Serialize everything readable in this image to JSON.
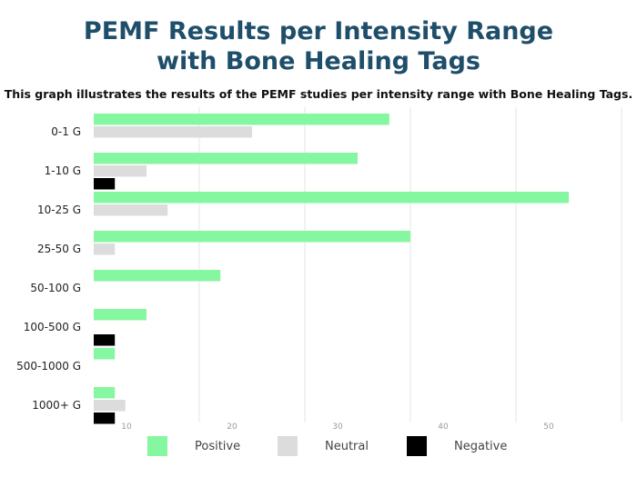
{
  "chart_data": {
    "type": "bar",
    "orientation": "horizontal",
    "title": "PEMF Results per Intensity Range with Bone Healing Tags",
    "title_lines": [
      "PEMF Results per Intensity Range",
      "with Bone Healing Tags"
    ],
    "subtitle": "This graph illustrates the results of the PEMF studies per intensity range with Bone Healing Tags.",
    "categories": [
      "0-1 G",
      "1-10 G",
      "10-25 G",
      "25-50 G",
      "50-100 G",
      "100-500 G",
      "500-1000 G",
      "1000+ G"
    ],
    "series": [
      {
        "name": "Positive",
        "color": "#86f7a1",
        "values": [
          28,
          25,
          45,
          30,
          12,
          5,
          2,
          2
        ]
      },
      {
        "name": "Neutral",
        "color": "#dcdcdc",
        "values": [
          15,
          5,
          7,
          2,
          0,
          0,
          0,
          3
        ]
      },
      {
        "name": "Negative",
        "color": "#000000",
        "values": [
          0,
          2,
          0,
          0,
          0,
          2,
          0,
          2
        ]
      }
    ],
    "x_ticks": [
      10,
      20,
      30,
      40,
      50
    ],
    "xlim": [
      0,
      50
    ],
    "grid": true,
    "legend_position": "bottom"
  }
}
